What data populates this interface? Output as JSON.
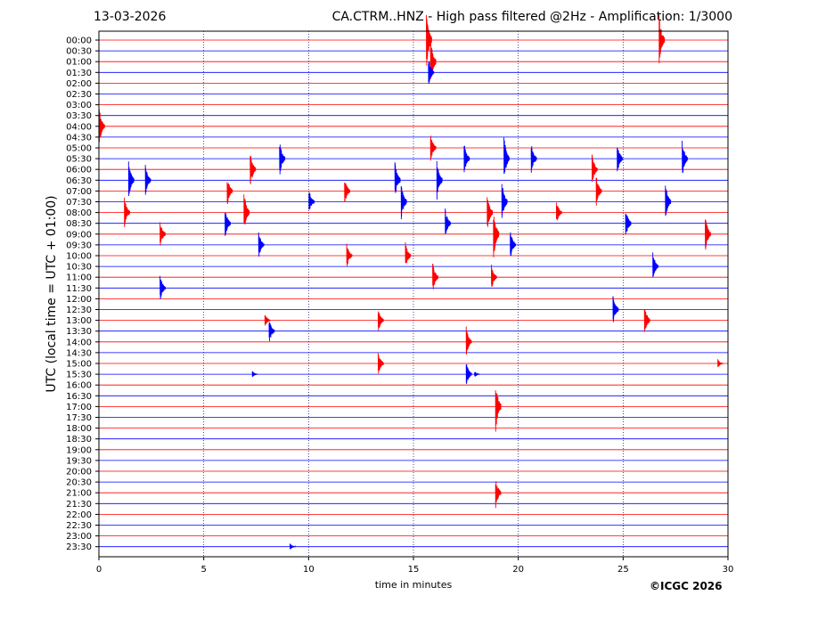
{
  "header": {
    "date": "13-03-2026",
    "title": "CA.CTRM..HNZ - High pass filtered @2Hz - Amplification: 1/3000"
  },
  "footer": {
    "copyright": "©ICGC 2026"
  },
  "chart_data": {
    "type": "line",
    "xlabel": "time in minutes",
    "ylabel": "UTC (local time = UTC + 01:00)",
    "xlim": [
      0,
      30
    ],
    "x_ticks": [
      0,
      5,
      10,
      15,
      20,
      25,
      30
    ],
    "vertical_gridlines_at": [
      5,
      10,
      15,
      20,
      25
    ],
    "row_colors": [
      "#ff0000",
      "#0000ff"
    ],
    "rows": [
      "00:00",
      "00:30",
      "01:00",
      "01:30",
      "02:00",
      "02:30",
      "03:00",
      "03:30",
      "04:00",
      "04:30",
      "05:00",
      "05:30",
      "06:00",
      "06:30",
      "07:00",
      "07:30",
      "08:00",
      "08:30",
      "09:00",
      "09:30",
      "10:00",
      "10:30",
      "11:00",
      "11:30",
      "12:00",
      "12:30",
      "13:00",
      "13:30",
      "14:00",
      "14:30",
      "15:00",
      "15:30",
      "16:00",
      "16:30",
      "17:00",
      "17:30",
      "18:00",
      "18:30",
      "19:00",
      "19:30",
      "20:00",
      "20:30",
      "21:00",
      "21:30",
      "22:00",
      "22:30",
      "23:00",
      "23:30"
    ],
    "events": [
      {
        "row": 0,
        "minute": 15.7,
        "amp": 2.8
      },
      {
        "row": 0,
        "minute": 26.8,
        "amp": 2.5
      },
      {
        "row": 2,
        "minute": 15.9,
        "amp": 2.2
      },
      {
        "row": 3,
        "minute": 15.8,
        "amp": 1.5
      },
      {
        "row": 8,
        "minute": 0.1,
        "amp": 1.8
      },
      {
        "row": 10,
        "minute": 15.9,
        "amp": 1.3
      },
      {
        "row": 11,
        "minute": 8.7,
        "amp": 1.8
      },
      {
        "row": 11,
        "minute": 17.5,
        "amp": 1.5
      },
      {
        "row": 11,
        "minute": 19.4,
        "amp": 2.2
      },
      {
        "row": 11,
        "minute": 20.7,
        "amp": 1.5
      },
      {
        "row": 11,
        "minute": 24.8,
        "amp": 1.5
      },
      {
        "row": 11,
        "minute": 27.9,
        "amp": 1.8
      },
      {
        "row": 12,
        "minute": 7.3,
        "amp": 1.8
      },
      {
        "row": 12,
        "minute": 23.6,
        "amp": 1.5
      },
      {
        "row": 13,
        "minute": 1.5,
        "amp": 1.8
      },
      {
        "row": 13,
        "minute": 2.3,
        "amp": 1.5
      },
      {
        "row": 13,
        "minute": 14.2,
        "amp": 1.8
      },
      {
        "row": 13,
        "minute": 16.2,
        "amp": 2.0
      },
      {
        "row": 14,
        "minute": 6.2,
        "amp": 1.5
      },
      {
        "row": 14,
        "minute": 11.8,
        "amp": 1.4
      },
      {
        "row": 14,
        "minute": 23.8,
        "amp": 1.5
      },
      {
        "row": 15,
        "minute": 10.1,
        "amp": 1.2
      },
      {
        "row": 15,
        "minute": 14.5,
        "amp": 1.8
      },
      {
        "row": 15,
        "minute": 19.3,
        "amp": 2.0
      },
      {
        "row": 15,
        "minute": 27.1,
        "amp": 1.8
      },
      {
        "row": 16,
        "minute": 1.3,
        "amp": 1.5
      },
      {
        "row": 16,
        "minute": 7.0,
        "amp": 2.0
      },
      {
        "row": 16,
        "minute": 18.6,
        "amp": 1.8
      },
      {
        "row": 16,
        "minute": 21.9,
        "amp": 1.2
      },
      {
        "row": 17,
        "minute": 6.1,
        "amp": 1.5
      },
      {
        "row": 17,
        "minute": 16.6,
        "amp": 1.5
      },
      {
        "row": 17,
        "minute": 25.2,
        "amp": 1.5
      },
      {
        "row": 18,
        "minute": 3.0,
        "amp": 1.3
      },
      {
        "row": 18,
        "minute": 18.9,
        "amp": 2.5
      },
      {
        "row": 18,
        "minute": 29.0,
        "amp": 1.8
      },
      {
        "row": 19,
        "minute": 7.7,
        "amp": 1.3
      },
      {
        "row": 19,
        "minute": 19.7,
        "amp": 1.5
      },
      {
        "row": 20,
        "minute": 11.9,
        "amp": 1.2
      },
      {
        "row": 20,
        "minute": 14.7,
        "amp": 1.3
      },
      {
        "row": 21,
        "minute": 26.5,
        "amp": 1.3
      },
      {
        "row": 22,
        "minute": 16.0,
        "amp": 1.5
      },
      {
        "row": 22,
        "minute": 18.8,
        "amp": 1.2
      },
      {
        "row": 23,
        "minute": 3.0,
        "amp": 1.3
      },
      {
        "row": 25,
        "minute": 24.6,
        "amp": 1.5
      },
      {
        "row": 26,
        "minute": 13.4,
        "amp": 1.2
      },
      {
        "row": 26,
        "minute": 8.0,
        "amp": 0.6
      },
      {
        "row": 26,
        "minute": 26.1,
        "amp": 1.5
      },
      {
        "row": 27,
        "minute": 8.2,
        "amp": 1.2
      },
      {
        "row": 28,
        "minute": 17.6,
        "amp": 1.5
      },
      {
        "row": 30,
        "minute": 13.4,
        "amp": 1.2
      },
      {
        "row": 30,
        "minute": 29.6,
        "amp": 0.4
      },
      {
        "row": 31,
        "minute": 17.6,
        "amp": 1.2
      },
      {
        "row": 31,
        "minute": 18.0,
        "amp": 0.3
      },
      {
        "row": 31,
        "minute": 7.4,
        "amp": 0.3
      },
      {
        "row": 34,
        "minute": 19.0,
        "amp": 2.5
      },
      {
        "row": 42,
        "minute": 19.0,
        "amp": 1.5
      },
      {
        "row": 47,
        "minute": 9.2,
        "amp": 0.3
      }
    ]
  }
}
